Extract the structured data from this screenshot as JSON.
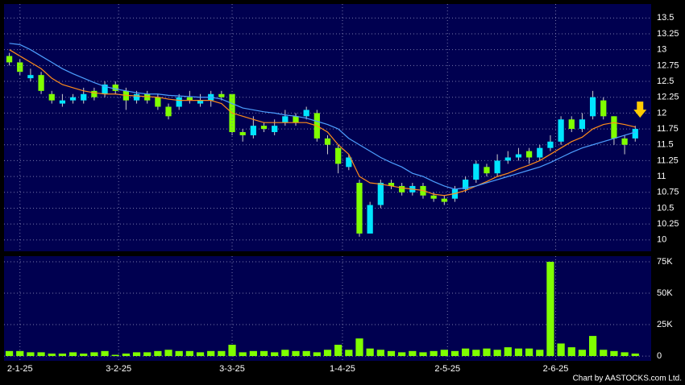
{
  "chart_data": [
    {
      "type": "candlestick",
      "up_color": "#00e5ff",
      "down_color": "#80ff00",
      "grid": true,
      "xlim": [
        -0.5,
        60.5
      ],
      "ylim": [
        9.82,
        13.72
      ],
      "yticks": [
        10,
        10.25,
        10.5,
        10.75,
        11,
        11.25,
        11.5,
        11.75,
        12,
        12.25,
        12.5,
        12.75,
        13,
        13.25,
        13.5
      ],
      "open": [
        12.9,
        12.8,
        12.55,
        12.6,
        12.3,
        12.15,
        12.2,
        12.2,
        12.35,
        12.3,
        12.45,
        12.35,
        12.2,
        12.3,
        12.25,
        12.1,
        12.1,
        12.25,
        12.15,
        12.2,
        12.3,
        12.3,
        11.7,
        11.65,
        11.8,
        11.7,
        11.85,
        11.95,
        11.95,
        12.0,
        11.6,
        11.45,
        11.15,
        10.9,
        10.1,
        10.55,
        10.9,
        10.85,
        10.75,
        10.85,
        10.7,
        10.65,
        10.65,
        10.8,
        10.95,
        11.15,
        11.05,
        11.25,
        11.3,
        11.4,
        11.3,
        11.45,
        11.55,
        11.9,
        11.75,
        11.95,
        12.2,
        11.95,
        11.6,
        11.6
      ],
      "high": [
        12.95,
        12.85,
        12.7,
        12.65,
        12.35,
        12.3,
        12.3,
        12.4,
        12.4,
        12.5,
        12.5,
        12.4,
        12.35,
        12.35,
        12.3,
        12.15,
        12.3,
        12.35,
        12.3,
        12.35,
        12.35,
        12.3,
        11.75,
        11.95,
        11.85,
        11.9,
        12.05,
        12.0,
        12.1,
        12.05,
        11.65,
        11.5,
        11.35,
        10.95,
        10.6,
        10.95,
        10.95,
        10.9,
        10.9,
        10.9,
        10.75,
        10.7,
        10.85,
        11.0,
        11.25,
        11.2,
        11.35,
        11.4,
        11.45,
        11.45,
        11.5,
        11.65,
        11.95,
        11.95,
        12.0,
        12.35,
        12.25,
        11.95,
        11.65,
        11.8
      ],
      "low": [
        12.75,
        12.6,
        12.5,
        12.3,
        12.15,
        12.1,
        12.15,
        12.15,
        12.2,
        12.25,
        12.3,
        12.05,
        12.15,
        12.15,
        12.05,
        11.9,
        12.05,
        12.15,
        12.1,
        12.1,
        12.2,
        11.65,
        11.55,
        11.6,
        11.7,
        11.65,
        11.8,
        11.8,
        11.9,
        11.55,
        11.35,
        11.05,
        11.1,
        10.05,
        10.1,
        10.5,
        10.8,
        10.7,
        10.7,
        10.65,
        10.6,
        10.55,
        10.6,
        10.75,
        10.9,
        11.0,
        11.0,
        11.2,
        11.25,
        11.2,
        11.25,
        11.4,
        11.5,
        11.7,
        11.7,
        11.9,
        11.9,
        11.5,
        11.35,
        11.55
      ],
      "close": [
        12.8,
        12.65,
        12.6,
        12.35,
        12.2,
        12.2,
        12.25,
        12.3,
        12.25,
        12.45,
        12.35,
        12.2,
        12.3,
        12.2,
        12.1,
        11.95,
        12.25,
        12.2,
        12.2,
        12.3,
        12.25,
        11.7,
        11.65,
        11.8,
        11.75,
        11.8,
        11.95,
        11.85,
        12.05,
        11.6,
        11.5,
        11.2,
        11.3,
        10.1,
        10.55,
        10.9,
        10.85,
        10.75,
        10.85,
        10.7,
        10.65,
        10.6,
        10.8,
        10.95,
        11.2,
        11.05,
        11.25,
        11.3,
        11.35,
        11.3,
        11.45,
        11.55,
        11.9,
        11.75,
        11.9,
        12.25,
        11.95,
        11.6,
        11.5,
        11.75
      ],
      "lines": [
        {
          "color": "#ff8c1a",
          "values": [
            13.0,
            12.9,
            12.8,
            12.7,
            12.55,
            12.45,
            12.4,
            12.35,
            12.32,
            12.3,
            12.3,
            12.28,
            12.27,
            12.26,
            12.25,
            12.22,
            12.2,
            12.2,
            12.2,
            12.2,
            12.15,
            12.0,
            11.95,
            11.9,
            11.85,
            11.85,
            11.85,
            11.85,
            11.85,
            11.8,
            11.7,
            11.5,
            11.35,
            11.0,
            10.9,
            10.88,
            10.85,
            10.82,
            10.8,
            10.78,
            10.72,
            10.7,
            10.73,
            10.78,
            10.85,
            10.92,
            11.0,
            11.05,
            11.12,
            11.18,
            11.25,
            11.35,
            11.45,
            11.55,
            11.62,
            11.75,
            11.82,
            11.85,
            11.82,
            11.78
          ]
        },
        {
          "color": "#4d9fff",
          "values": [
            13.1,
            13.08,
            13.0,
            12.9,
            12.8,
            12.7,
            12.62,
            12.55,
            12.48,
            12.42,
            12.38,
            12.35,
            12.32,
            12.3,
            12.3,
            12.28,
            12.27,
            12.26,
            12.25,
            12.25,
            12.22,
            12.15,
            12.08,
            12.05,
            12.02,
            12.0,
            11.97,
            11.95,
            11.92,
            11.87,
            11.82,
            11.75,
            11.6,
            11.5,
            11.4,
            11.3,
            11.22,
            11.15,
            11.05,
            11.0,
            10.92,
            10.85,
            10.8,
            10.82,
            10.85,
            10.9,
            10.95,
            11.0,
            11.05,
            11.1,
            11.15,
            11.22,
            11.3,
            11.38,
            11.45,
            11.5,
            11.55,
            11.6,
            11.65,
            11.7
          ]
        }
      ]
    },
    {
      "type": "bar",
      "color": "#80ff00",
      "grid": true,
      "xlim": [
        -0.5,
        60.5
      ],
      "ylim": [
        -3800,
        79500
      ],
      "yticks": [
        0,
        {
          "value": 25000,
          "label": "25K"
        },
        {
          "value": 50000,
          "label": "50K"
        },
        {
          "value": 75000,
          "label": "75K"
        }
      ],
      "xticks": [
        {
          "value": 1,
          "label": "2-1-25"
        },
        {
          "value": 10.3,
          "label": "3-2-25"
        },
        {
          "value": 21,
          "label": "3-3-25"
        },
        {
          "value": 31.4,
          "label": "1-4-25"
        },
        {
          "value": 41.3,
          "label": "2-5-25"
        },
        {
          "value": 51.5,
          "label": "2-6-25"
        }
      ],
      "values": [
        4000,
        4000,
        3000,
        3000,
        2000,
        2000,
        3000,
        2000,
        3000,
        4000,
        1000,
        2000,
        3000,
        3000,
        4000,
        5000,
        4000,
        4000,
        3000,
        4000,
        4000,
        9000,
        3000,
        4000,
        4000,
        3000,
        5000,
        4000,
        4000,
        3000,
        5000,
        9000,
        5000,
        14000,
        6000,
        5000,
        4000,
        3000,
        4000,
        3000,
        4000,
        5000,
        4000,
        6000,
        5000,
        6000,
        5000,
        7000,
        6000,
        6000,
        5000,
        75000,
        10000,
        7000,
        5000,
        16000,
        5000,
        4000,
        3000,
        2000
      ],
      "source": "Chart by AASTOCKS.com Ltd."
    }
  ]
}
